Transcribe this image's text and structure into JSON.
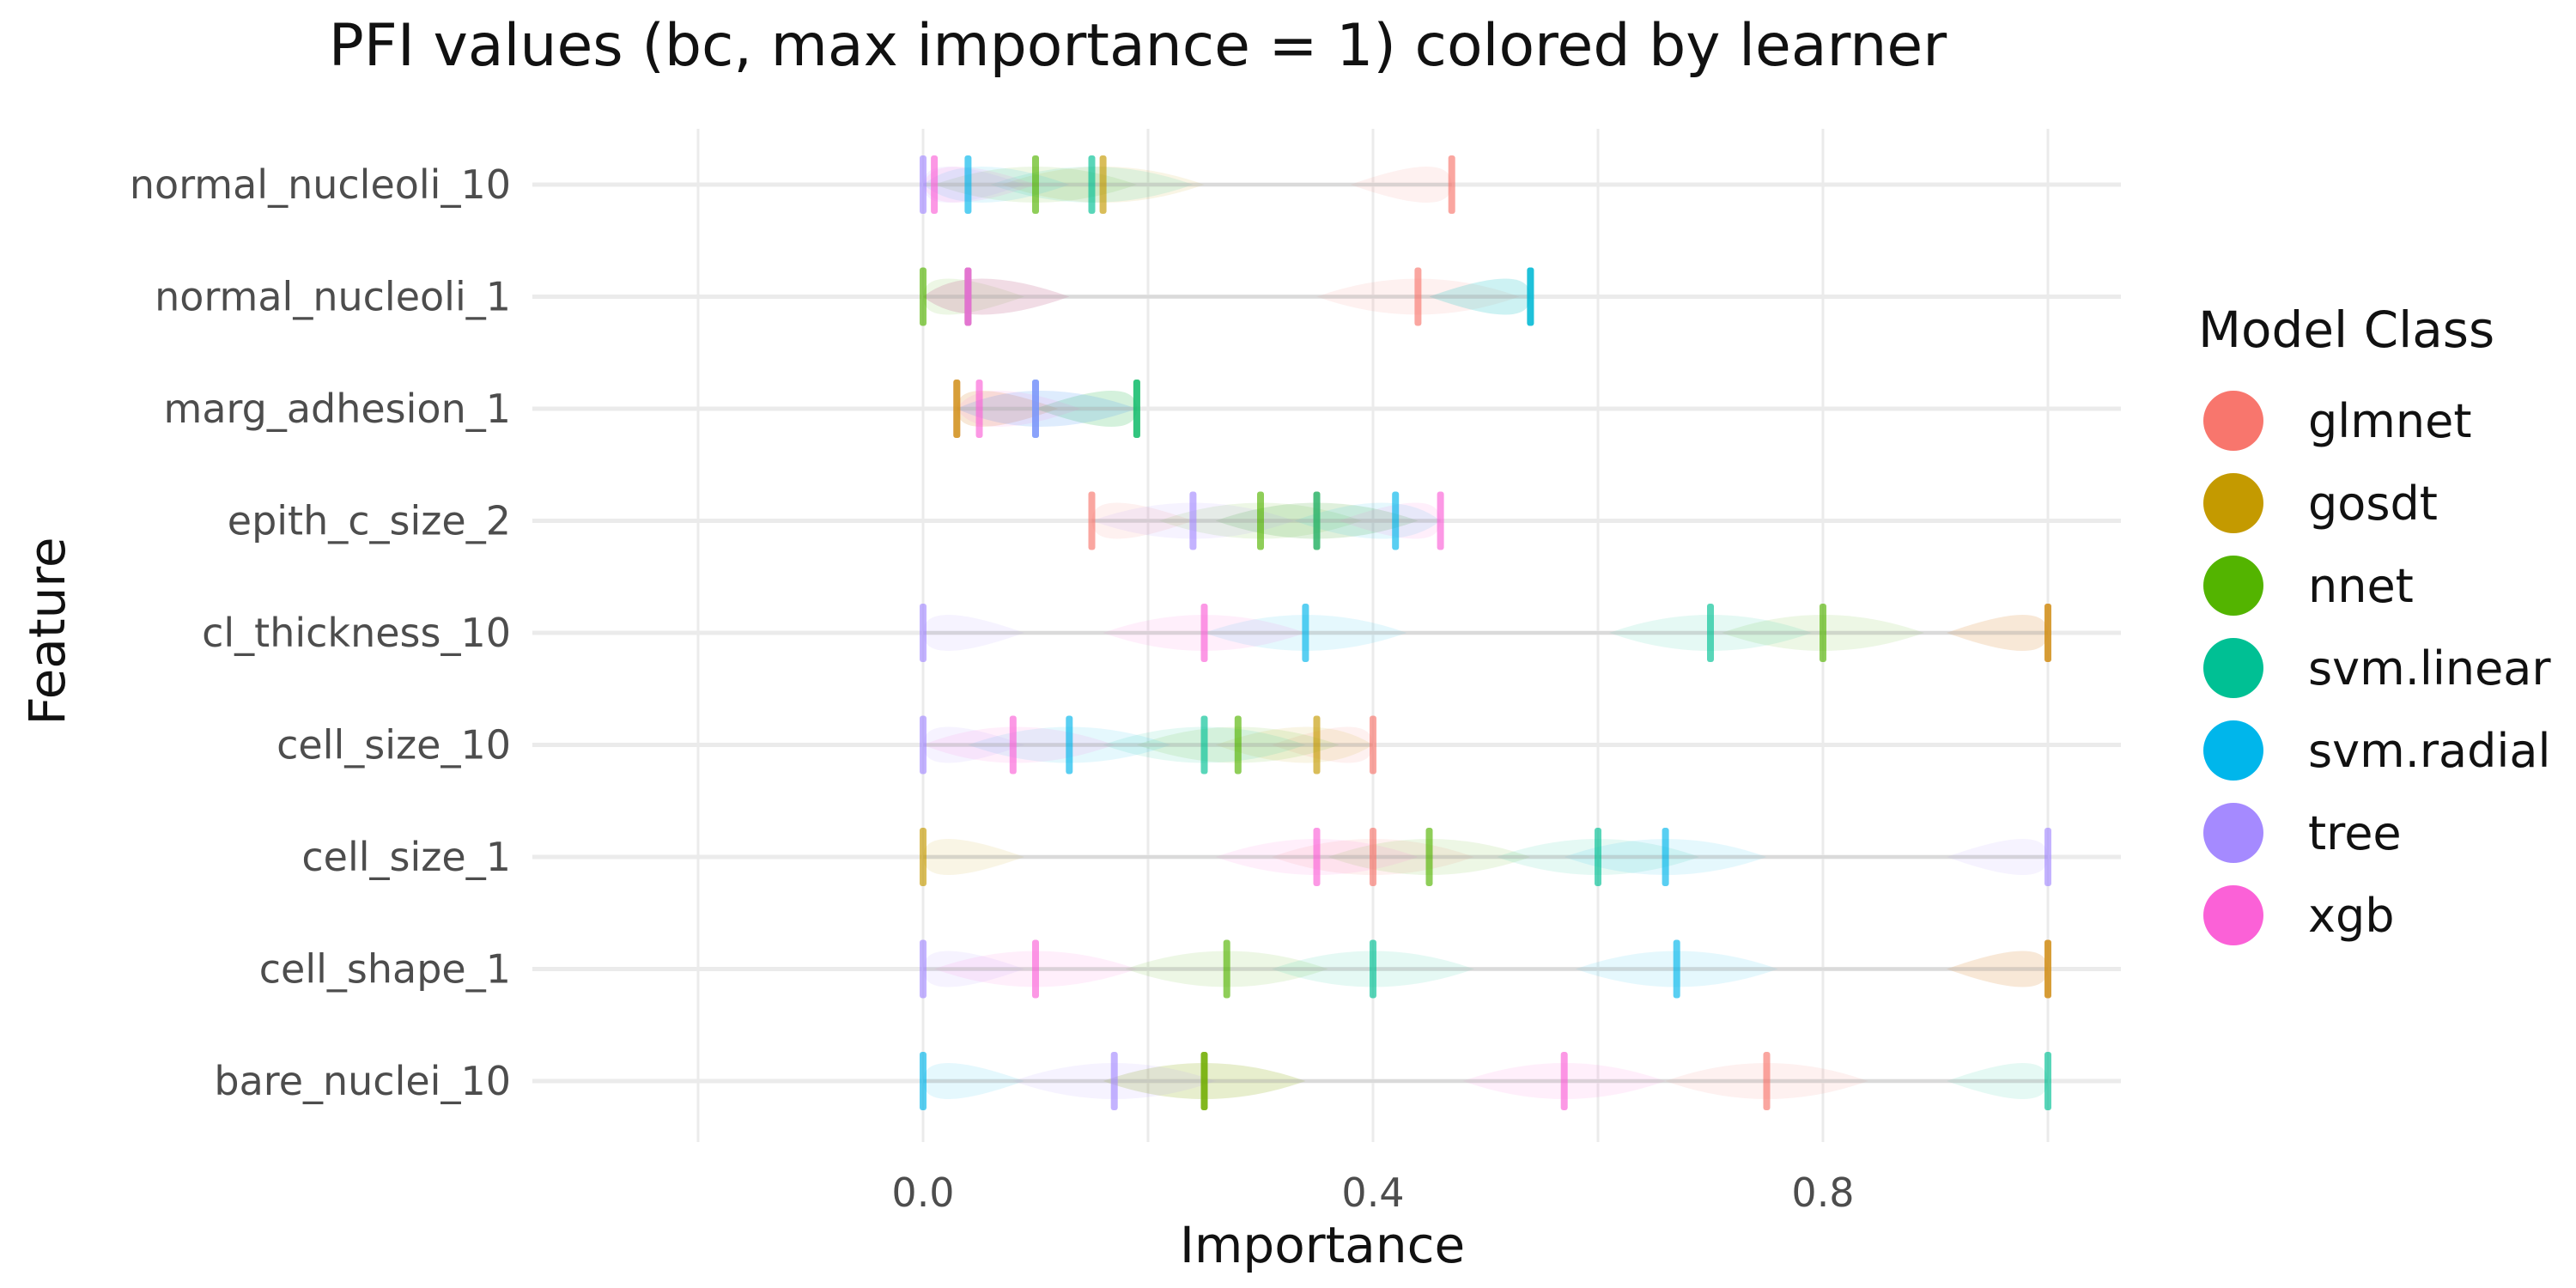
{
  "chart_data": {
    "type": "violin",
    "title": "PFI values (bc, max importance = 1) colored by learner",
    "xlabel": "Importance",
    "ylabel": "Feature",
    "xlim": [
      -0.2,
      1.05
    ],
    "xticks": [
      0.0,
      0.4,
      0.8
    ],
    "xtick_labels": [
      "0.0",
      "0.4",
      "0.8"
    ],
    "grid": true,
    "legend_position": "right",
    "legend_title": "Model Class",
    "categories": [
      "normal_nucleoli_10",
      "normal_nucleoli_1",
      "marg_adhesion_1",
      "epith_c_size_2",
      "cl_thickness_10",
      "cell_size_10",
      "cell_size_1",
      "cell_shape_1",
      "bare_nuclei_10"
    ],
    "series": [
      {
        "name": "glmnet",
        "color": "#F8766D",
        "values": [
          0.47,
          0.44,
          0.03,
          0.15,
          1.0,
          0.4,
          0.4,
          1.0,
          0.75
        ]
      },
      {
        "name": "gosdt",
        "color": "#C49A00",
        "values": [
          0.16,
          0.04,
          0.03,
          0.35,
          1.0,
          0.35,
          0.0,
          1.0,
          0.25
        ]
      },
      {
        "name": "nnet",
        "color": "#53B400",
        "values": [
          0.1,
          0.0,
          0.19,
          0.3,
          0.8,
          0.28,
          0.45,
          0.27,
          0.25
        ]
      },
      {
        "name": "svm.linear",
        "color": "#00C094",
        "values": [
          0.15,
          0.54,
          0.19,
          0.35,
          0.7,
          0.25,
          0.6,
          0.4,
          1.0
        ]
      },
      {
        "name": "svm.radial",
        "color": "#00B6EB",
        "values": [
          0.04,
          0.54,
          0.1,
          0.42,
          0.34,
          0.13,
          0.66,
          0.67,
          0.0
        ]
      },
      {
        "name": "tree",
        "color": "#A58AFF",
        "values": [
          0.0,
          0.04,
          0.1,
          0.24,
          0.0,
          0.0,
          1.0,
          0.0,
          0.17
        ]
      },
      {
        "name": "xgb",
        "color": "#FB61D7",
        "values": [
          0.01,
          0.04,
          0.05,
          0.46,
          0.25,
          0.08,
          0.35,
          0.1,
          0.57
        ]
      }
    ]
  }
}
